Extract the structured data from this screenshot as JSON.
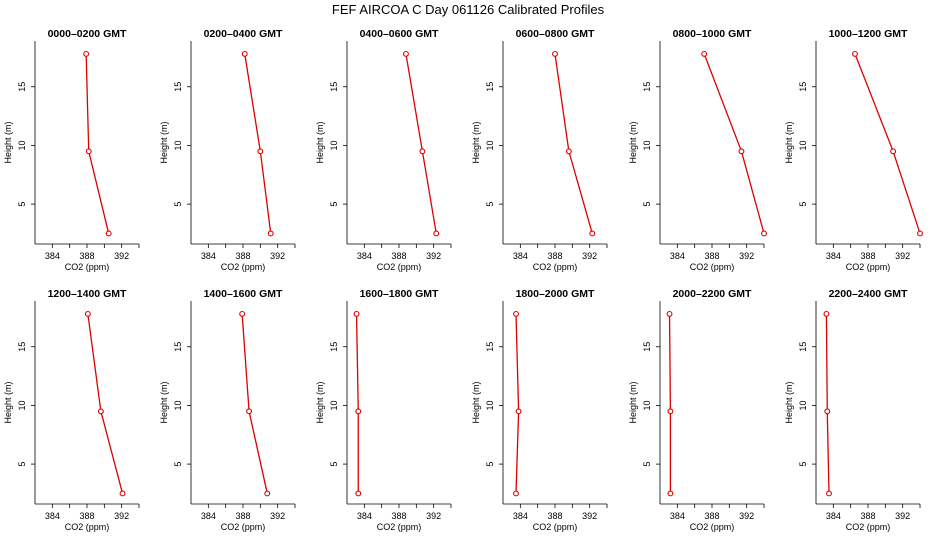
{
  "chart_data": {
    "type": "line",
    "title": "FEF AIRCOA C  Day 061126  Calibrated Profiles",
    "xlabel": "CO2 (ppm)",
    "ylabel": "Height (m)",
    "xlim": [
      382,
      394
    ],
    "ylim": [
      1.6,
      18.9
    ],
    "xticks": [
      384,
      388,
      392
    ],
    "yticks": [
      5,
      10,
      15
    ],
    "heights": [
      2.5,
      9.5,
      17.8
    ],
    "series_color": "#dd0000",
    "panels": [
      {
        "title": "0000–0200 GMT",
        "co2": [
          390.5,
          388.2,
          387.9
        ]
      },
      {
        "title": "0200–0400 GMT",
        "co2": [
          391.2,
          390.0,
          388.2
        ]
      },
      {
        "title": "0400–0600 GMT",
        "co2": [
          392.3,
          390.7,
          388.8
        ]
      },
      {
        "title": "0600–0800 GMT",
        "co2": [
          392.3,
          389.6,
          388.0
        ]
      },
      {
        "title": "0800–1000 GMT",
        "co2": [
          394.0,
          391.4,
          387.1
        ]
      },
      {
        "title": "1000–1200 GMT",
        "co2": [
          394.0,
          390.9,
          386.5
        ]
      },
      {
        "title": "1200–1400 GMT",
        "co2": [
          392.1,
          389.6,
          388.1
        ]
      },
      {
        "title": "1400–1600 GMT",
        "co2": [
          390.8,
          388.7,
          387.9
        ]
      },
      {
        "title": "1600–1800 GMT",
        "co2": [
          383.3,
          383.3,
          383.1
        ]
      },
      {
        "title": "1800–2000 GMT",
        "co2": [
          383.5,
          383.8,
          383.5
        ]
      },
      {
        "title": "2000–2200 GMT",
        "co2": [
          383.2,
          383.2,
          383.1
        ]
      },
      {
        "title": "2200–2400 GMT",
        "co2": [
          383.5,
          383.3,
          383.2
        ]
      }
    ]
  }
}
